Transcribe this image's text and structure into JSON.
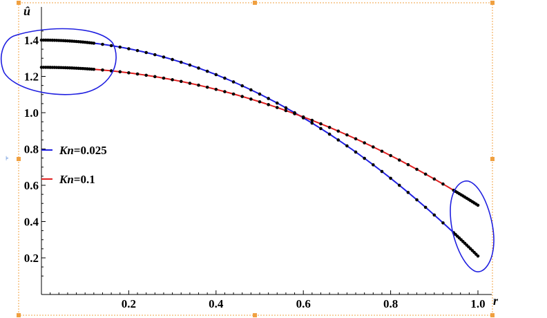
{
  "chart_data": {
    "type": "line",
    "xlabel": "r",
    "ylabel": "û",
    "xlim": [
      0,
      1.02
    ],
    "ylim": [
      0.1,
      1.5
    ],
    "x_ticks": [
      "0.2",
      "0.4",
      "0.6",
      "0.8",
      "1.0"
    ],
    "y_ticks": [
      "0.2",
      "0.4",
      "0.6",
      "0.8",
      "1.0",
      "1.2",
      "1.4"
    ],
    "legend_placement": "left-middle",
    "grid": false,
    "series": [
      {
        "name": "Kn=0.025",
        "name_parts": [
          "Kn",
          "=0.025"
        ],
        "color": "#1f1fe0",
        "formula": "u = 0.21 + 1.19*(1 - r^2)",
        "x_range": [
          0,
          1
        ],
        "y_range": [
          0.21,
          1.4
        ]
      },
      {
        "name": "Kn=0.1",
        "name_parts": [
          "Kn",
          "=0.1"
        ],
        "color": "#e01f1f",
        "formula": "u = 0.49 + 0.76*(1 - r^2)",
        "x_range": [
          0,
          1
        ],
        "y_range": [
          0.49,
          1.25
        ]
      }
    ],
    "point_color": "#000000",
    "annotations": [
      {
        "type": "hand-drawn-ellipse",
        "color": "#1f1fe0",
        "region": "near r=0, around curve maxima"
      },
      {
        "type": "hand-drawn-ellipse",
        "color": "#1f1fe0",
        "region": "near r=1, around curve ends"
      }
    ]
  }
}
